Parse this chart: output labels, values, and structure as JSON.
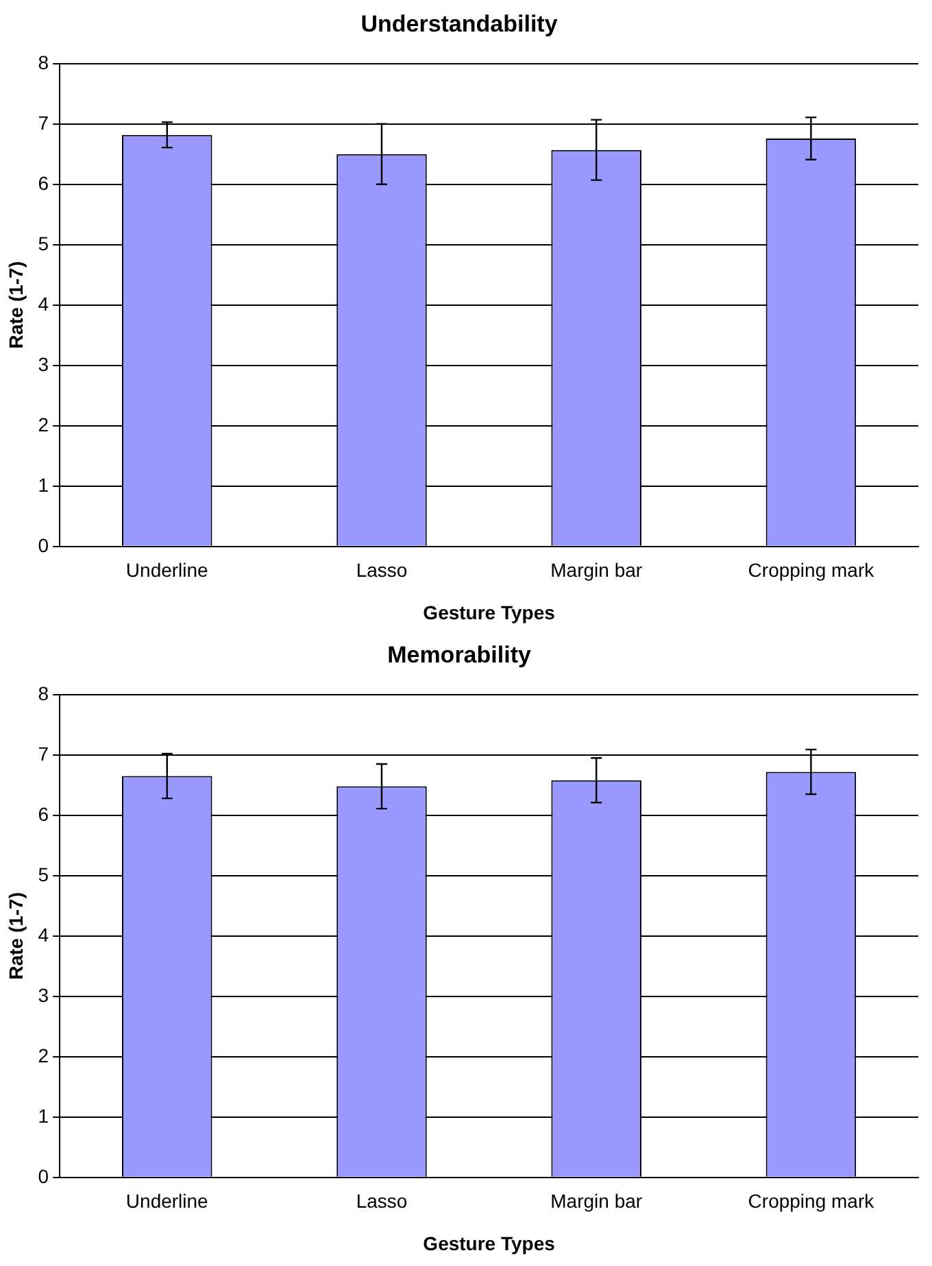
{
  "chart_data": [
    {
      "type": "bar",
      "title": "Understandability",
      "xlabel": "Gesture Types",
      "ylabel": "Rate (1-7)",
      "categories": [
        "Underline",
        "Lasso",
        "Margin bar",
        "Cropping mark"
      ],
      "values": [
        6.82,
        6.5,
        6.57,
        6.76
      ],
      "errors": [
        0.21,
        0.5,
        0.5,
        0.35
      ],
      "color": "#9999ff",
      "ylim": [
        0,
        8
      ],
      "yticks": [
        0,
        1,
        2,
        3,
        4,
        5,
        6,
        7,
        8
      ],
      "grid": "y",
      "legend": false
    },
    {
      "type": "bar",
      "title": "Memorability",
      "xlabel": "Gesture Types",
      "ylabel": "Rate (1-7)",
      "categories": [
        "Underline",
        "Lasso",
        "Margin bar",
        "Cropping mark"
      ],
      "values": [
        6.65,
        6.48,
        6.58,
        6.72
      ],
      "errors": [
        0.37,
        0.37,
        0.37,
        0.37
      ],
      "color": "#9999ff",
      "ylim": [
        0,
        8
      ],
      "yticks": [
        0,
        1,
        2,
        3,
        4,
        5,
        6,
        7,
        8
      ],
      "grid": "y",
      "legend": false
    }
  ]
}
